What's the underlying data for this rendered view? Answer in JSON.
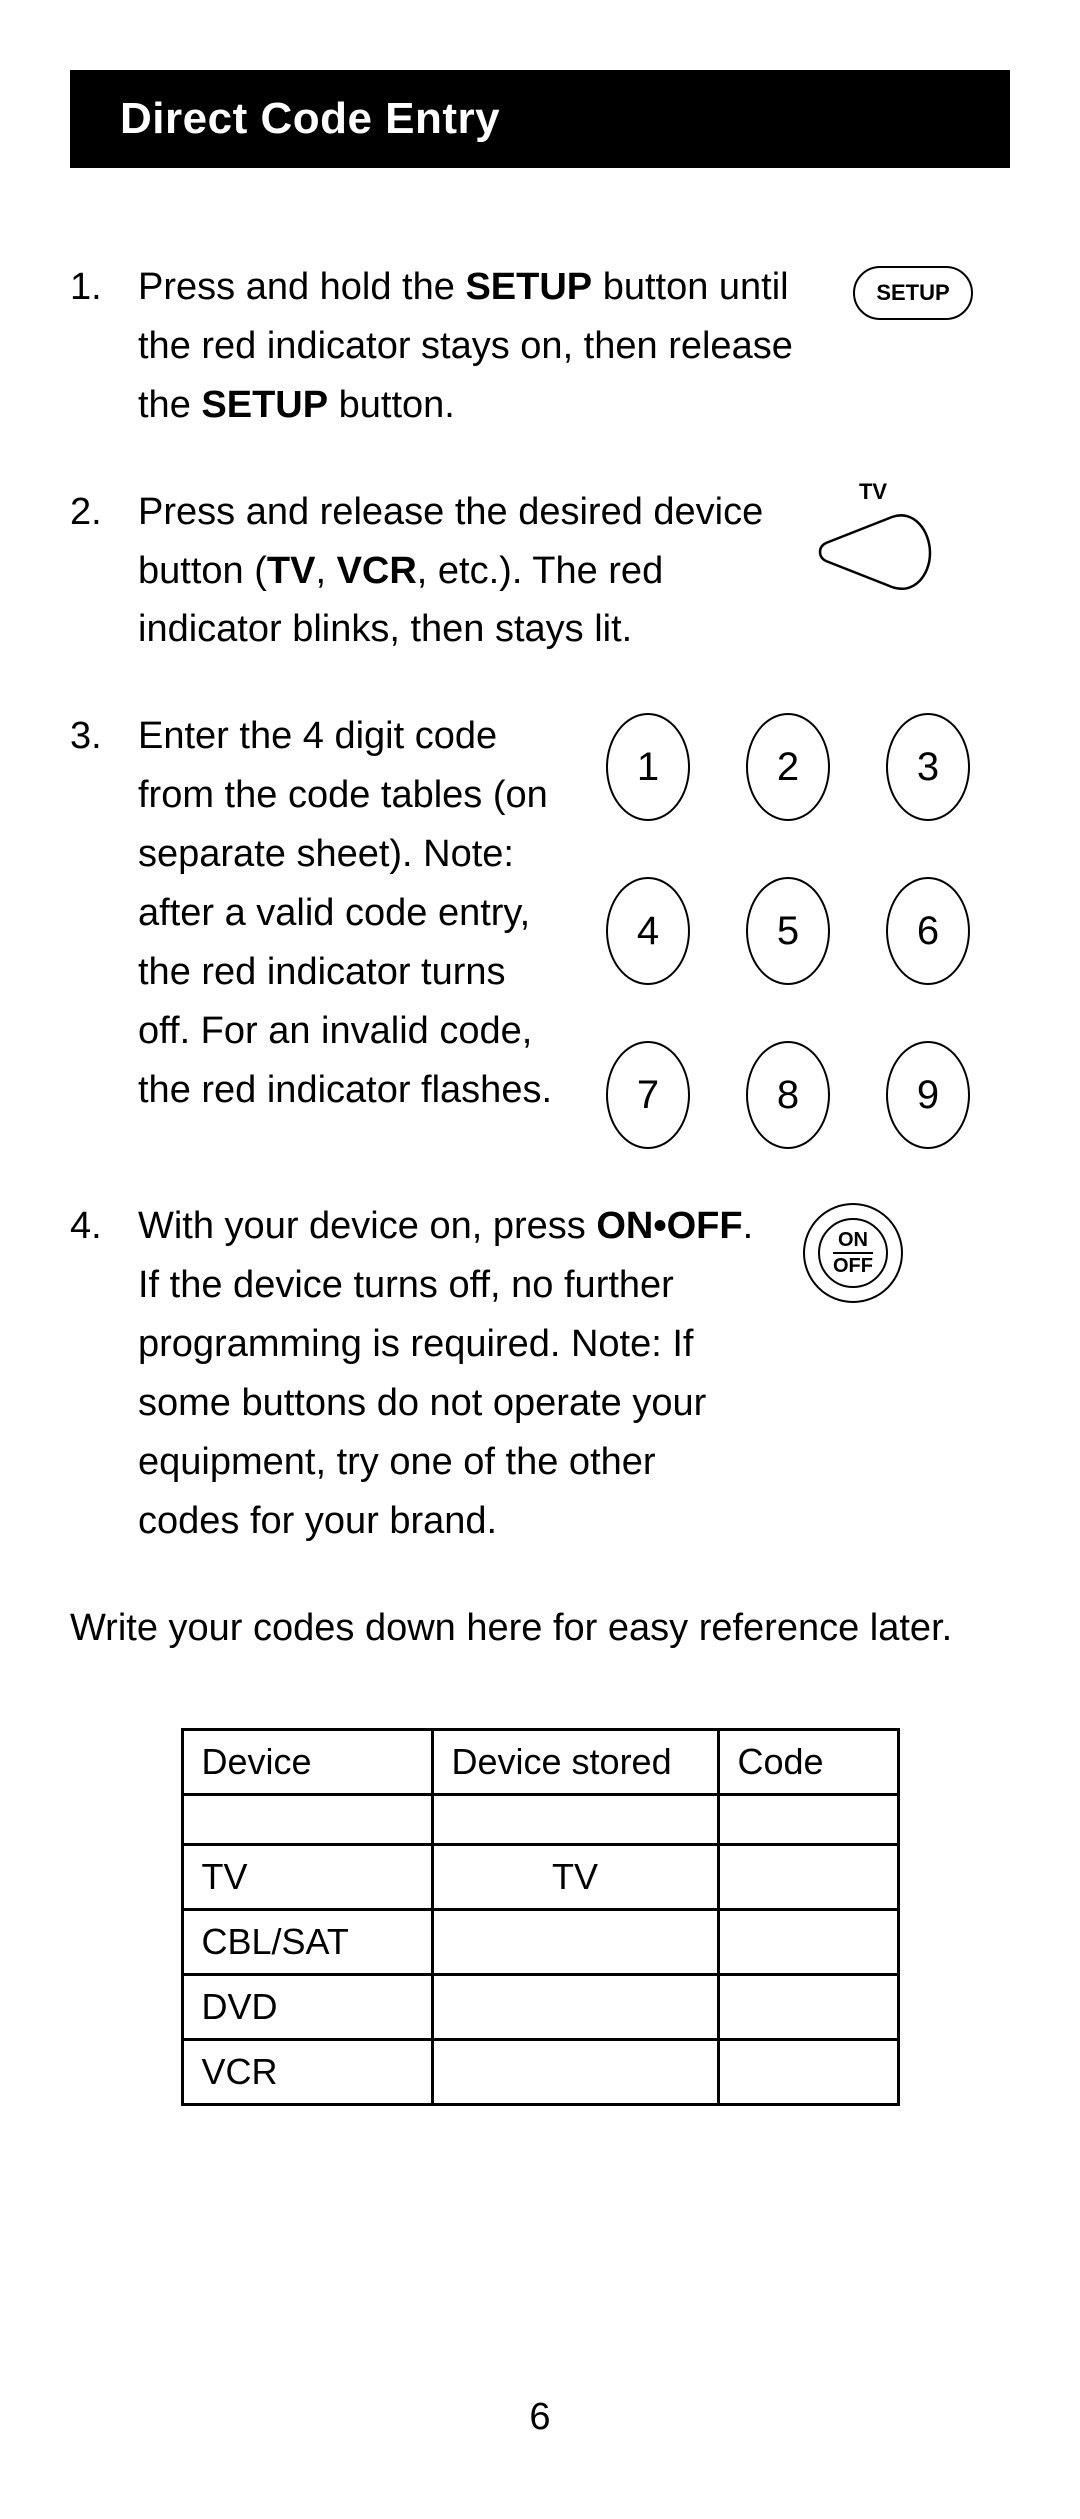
{
  "title": "Direct Code Entry",
  "steps": [
    {
      "num": "1.",
      "parts": [
        {
          "t": "Press and hold the "
        },
        {
          "t": "SETUP",
          "bold": true
        },
        {
          "t": " button until the red indicator stays on, then release the "
        },
        {
          "t": "SETUP",
          "bold": true
        },
        {
          "t": " button."
        }
      ],
      "figure": "setup"
    },
    {
      "num": "2.",
      "parts": [
        {
          "t": "Press and release the desired device button ("
        },
        {
          "t": "TV",
          "bold": true
        },
        {
          "t": ", "
        },
        {
          "t": "VCR",
          "bold": true
        },
        {
          "t": ", etc.). The red indicator blinks, then stays lit."
        }
      ],
      "figure": "tv"
    },
    {
      "num": "3.",
      "parts": [
        {
          "t": "Enter the 4 digit code from the code tables (on separate sheet). Note: after a valid code entry, the red indicator turns off.  For an invalid code, the red indicator flashes."
        }
      ],
      "figure": "keypad"
    },
    {
      "num": "4.",
      "parts": [
        {
          "t": "With your device on, press "
        },
        {
          "t": "ON•OFF",
          "bold": true
        },
        {
          "t": ". If the device turns off, no further programming is required. Note: If some buttons do not operate your equipment, try one of the other codes for your brand."
        }
      ],
      "figure": "onoff"
    }
  ],
  "setup_label": "SETUP",
  "tv_label": "TV",
  "keypad_digits": [
    "1",
    "2",
    "3",
    "4",
    "5",
    "6",
    "7",
    "8",
    "9"
  ],
  "onoff_top": "ON",
  "onoff_bottom": "OFF",
  "write_codes_text": "Write your codes down here for easy reference later.",
  "table": {
    "headers": [
      "Device",
      "Device stored",
      "Code"
    ],
    "rows": [
      {
        "device": "TV",
        "stored": "TV",
        "code": ""
      },
      {
        "device": "CBL/SAT",
        "stored": "",
        "code": ""
      },
      {
        "device": "DVD",
        "stored": "",
        "code": ""
      },
      {
        "device": "VCR",
        "stored": "",
        "code": ""
      }
    ]
  },
  "page_number": "6"
}
